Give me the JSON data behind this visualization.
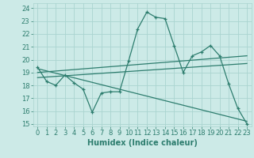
{
  "title": "",
  "xlabel": "Humidex (Indice chaleur)",
  "bg_color": "#cceae7",
  "grid_color": "#aad4d0",
  "line_color": "#2d7d6e",
  "xlim": [
    -0.5,
    23.5
  ],
  "ylim": [
    14.8,
    24.4
  ],
  "yticks": [
    15,
    16,
    17,
    18,
    19,
    20,
    21,
    22,
    23,
    24
  ],
  "xticks": [
    0,
    1,
    2,
    3,
    4,
    5,
    6,
    7,
    8,
    9,
    10,
    11,
    12,
    13,
    14,
    15,
    16,
    17,
    18,
    19,
    20,
    21,
    22,
    23
  ],
  "main_x": [
    0,
    1,
    2,
    3,
    4,
    5,
    6,
    7,
    8,
    9,
    10,
    11,
    12,
    13,
    14,
    15,
    16,
    17,
    18,
    19,
    20,
    21,
    22,
    23
  ],
  "main_y": [
    19.4,
    18.3,
    18.0,
    18.8,
    18.2,
    17.7,
    15.9,
    17.4,
    17.5,
    17.5,
    19.9,
    22.4,
    23.7,
    23.3,
    23.2,
    21.1,
    19.0,
    20.3,
    20.6,
    21.1,
    20.3,
    18.1,
    16.2,
    15.0
  ],
  "trend_lines": [
    {
      "x": [
        0,
        23
      ],
      "y": [
        18.6,
        19.7
      ]
    },
    {
      "x": [
        0,
        23
      ],
      "y": [
        19.0,
        20.3
      ]
    },
    {
      "x": [
        0,
        23
      ],
      "y": [
        19.3,
        15.2
      ]
    }
  ],
  "tick_fontsize": 6,
  "xlabel_fontsize": 7
}
